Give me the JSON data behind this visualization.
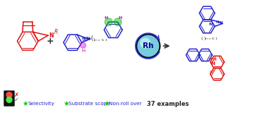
{
  "bg_color": "#ffffff",
  "rc": "#dd1111",
  "bc": "#2222cc",
  "mc": "#cc00cc",
  "gc": "#00bb00",
  "dark": "#222222",
  "rh_outer": "#111111",
  "rh_inner": "#88ddee",
  "rh_light": "#ccf5ff",
  "rh_text_color": "#0000aa",
  "legend_items": [
    {
      "symbol": "★",
      "sym_color": "#00cc00",
      "text": "Selectivity",
      "text_color": "#2222cc"
    },
    {
      "symbol": "★",
      "sym_color": "#00cc00",
      "text": "Substrate scope",
      "text_color": "#2222cc"
    },
    {
      "symbol": "★",
      "sym_color": "#00cc00",
      "text": "Non-roll over",
      "text_color": "#2222cc"
    }
  ],
  "examples_text": "37 examples",
  "tl_bg": "#111111",
  "tl_red": "#ff4444",
  "tl_green": "#44ee44"
}
